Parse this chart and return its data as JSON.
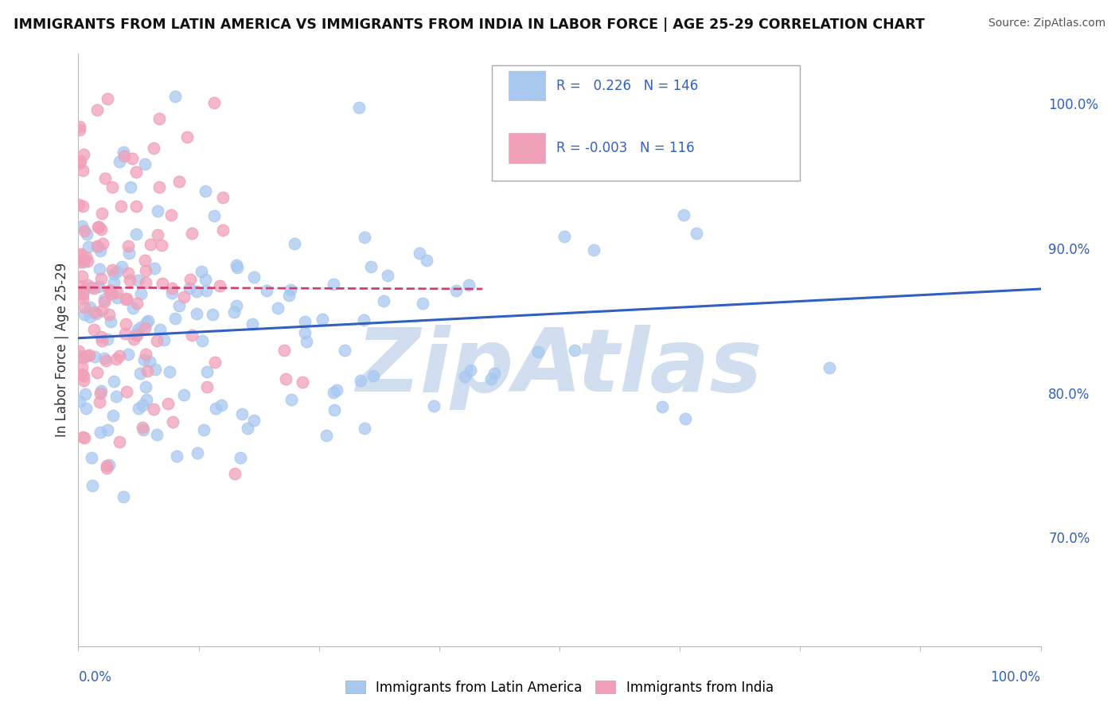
{
  "title": "IMMIGRANTS FROM LATIN AMERICA VS IMMIGRANTS FROM INDIA IN LABOR FORCE | AGE 25-29 CORRELATION CHART",
  "source": "Source: ZipAtlas.com",
  "ylabel": "In Labor Force | Age 25-29",
  "legend_label1": "Immigrants from Latin America",
  "legend_label2": "Immigrants from India",
  "R1": 0.226,
  "N1": 146,
  "R2": -0.003,
  "N2": 116,
  "color1": "#A8C8F0",
  "color2": "#F0A0B8",
  "trendline1_color": "#3060C0",
  "trendline2_color": "#D04070",
  "trendline2_dash": "dashed",
  "watermark": "ZipAtlas",
  "watermark_color": "#D0DEF0",
  "yright_ticks": [
    "70.0%",
    "80.0%",
    "90.0%",
    "100.0%"
  ],
  "yright_vals": [
    0.7,
    0.8,
    0.9,
    1.0
  ],
  "xlim": [
    0.0,
    1.0
  ],
  "ylim": [
    0.625,
    1.035
  ],
  "blue_trendline_x0": 0.0,
  "blue_trendline_y0": 0.838,
  "blue_trendline_x1": 1.0,
  "blue_trendline_y1": 0.872,
  "pink_trendline_x0": 0.0,
  "pink_trendline_x1": 0.42,
  "pink_trendline_y0": 0.873,
  "pink_trendline_y1": 0.872,
  "grid_color": "#DDDDDD",
  "grid_linestyle": "--",
  "scatter_size": 110,
  "scatter_alpha": 0.75,
  "scatter_lw": 1.0
}
